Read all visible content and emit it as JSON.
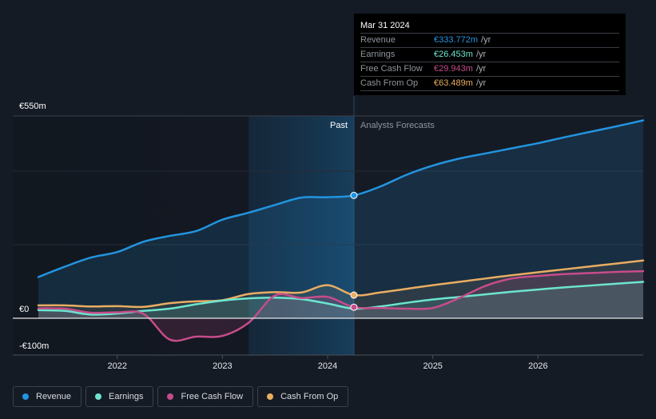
{
  "tooltip": {
    "date": "Mar 31 2024",
    "rows": [
      {
        "label": "Revenue",
        "value": "€333.772m",
        "unit": "/yr",
        "color": "#2394df"
      },
      {
        "label": "Earnings",
        "value": "€26.453m",
        "unit": "/yr",
        "color": "#6ce5cf"
      },
      {
        "label": "Free Cash Flow",
        "value": "€29.943m",
        "unit": "/yr",
        "color": "#c64c8a"
      },
      {
        "label": "Cash From Op",
        "value": "€63.489m",
        "unit": "/yr",
        "color": "#e9ad62"
      }
    ]
  },
  "legend": [
    {
      "label": "Revenue",
      "color": "#2394df"
    },
    {
      "label": "Earnings",
      "color": "#6ce5cf"
    },
    {
      "label": "Free Cash Flow",
      "color": "#c64c8a"
    },
    {
      "label": "Cash From Op",
      "color": "#e9ad62"
    }
  ],
  "chart_data": {
    "type": "line",
    "title": "",
    "xlabel": "",
    "ylabel": "",
    "region_labels": {
      "past": "Past",
      "forecast": "Analysts Forecasts"
    },
    "past_shade_start": 2023.25,
    "divider_x": 2024.25,
    "x_range": [
      2021.25,
      2027.0
    ],
    "ylim": [
      -100,
      550
    ],
    "y_tick_labels": [
      {
        "value": 550,
        "label": "€550m"
      },
      {
        "value": 0,
        "label": "€0"
      },
      {
        "value": -100,
        "label": "-€100m"
      }
    ],
    "gridlines": [
      550,
      400,
      200,
      0
    ],
    "x_ticks": [
      {
        "value": 2022,
        "label": "2022"
      },
      {
        "value": 2023,
        "label": "2023"
      },
      {
        "value": 2024,
        "label": "2024"
      },
      {
        "value": 2025,
        "label": "2025"
      },
      {
        "value": 2026,
        "label": "2026"
      }
    ],
    "series": [
      {
        "name": "Revenue",
        "color": "#2394df",
        "marker_at": 2024.25,
        "points": [
          [
            2021.25,
            112
          ],
          [
            2021.5,
            140
          ],
          [
            2021.75,
            165
          ],
          [
            2022.0,
            180
          ],
          [
            2022.25,
            208
          ],
          [
            2022.5,
            224
          ],
          [
            2022.75,
            237
          ],
          [
            2023.0,
            268
          ],
          [
            2023.25,
            287
          ],
          [
            2023.5,
            308
          ],
          [
            2023.75,
            328
          ],
          [
            2024.0,
            329
          ],
          [
            2024.25,
            334
          ],
          [
            2024.5,
            358
          ],
          [
            2024.75,
            390
          ],
          [
            2025.0,
            415
          ],
          [
            2025.25,
            434
          ],
          [
            2025.5,
            448
          ],
          [
            2025.75,
            462
          ],
          [
            2026.0,
            476
          ],
          [
            2026.25,
            492
          ],
          [
            2026.5,
            507
          ],
          [
            2026.75,
            522
          ],
          [
            2027.0,
            538
          ]
        ]
      },
      {
        "name": "Earnings",
        "color": "#6ce5cf",
        "marker_at": null,
        "points": [
          [
            2021.25,
            22
          ],
          [
            2021.5,
            20
          ],
          [
            2021.75,
            10
          ],
          [
            2022.0,
            13
          ],
          [
            2022.25,
            20
          ],
          [
            2022.5,
            26
          ],
          [
            2022.75,
            38
          ],
          [
            2023.0,
            48
          ],
          [
            2023.25,
            54
          ],
          [
            2023.5,
            56
          ],
          [
            2023.75,
            52
          ],
          [
            2024.0,
            40
          ],
          [
            2024.25,
            26
          ],
          [
            2024.5,
            32
          ],
          [
            2024.75,
            42
          ],
          [
            2025.0,
            51
          ],
          [
            2025.25,
            58
          ],
          [
            2025.5,
            65
          ],
          [
            2025.75,
            72
          ],
          [
            2026.0,
            78
          ],
          [
            2026.25,
            84
          ],
          [
            2026.5,
            89
          ],
          [
            2026.75,
            94
          ],
          [
            2027.0,
            99
          ]
        ]
      },
      {
        "name": "Free Cash Flow",
        "color": "#c64c8a",
        "marker_at": 2024.25,
        "points": [
          [
            2021.25,
            27
          ],
          [
            2021.5,
            26
          ],
          [
            2021.75,
            15
          ],
          [
            2022.0,
            16
          ],
          [
            2022.25,
            12
          ],
          [
            2022.5,
            -58
          ],
          [
            2022.75,
            -50
          ],
          [
            2023.0,
            -48
          ],
          [
            2023.25,
            -12
          ],
          [
            2023.5,
            62
          ],
          [
            2023.75,
            55
          ],
          [
            2024.0,
            58
          ],
          [
            2024.25,
            30
          ],
          [
            2024.5,
            28
          ],
          [
            2024.75,
            26
          ],
          [
            2025.0,
            28
          ],
          [
            2025.25,
            55
          ],
          [
            2025.5,
            88
          ],
          [
            2025.75,
            108
          ],
          [
            2026.0,
            115
          ],
          [
            2026.25,
            120
          ],
          [
            2026.5,
            123
          ],
          [
            2026.75,
            126
          ],
          [
            2027.0,
            128
          ]
        ]
      },
      {
        "name": "Cash From Op",
        "color": "#e9ad62",
        "marker_at": 2024.25,
        "points": [
          [
            2021.25,
            35
          ],
          [
            2021.5,
            35
          ],
          [
            2021.75,
            32
          ],
          [
            2022.0,
            33
          ],
          [
            2022.25,
            31
          ],
          [
            2022.5,
            41
          ],
          [
            2022.75,
            46
          ],
          [
            2023.0,
            49
          ],
          [
            2023.25,
            66
          ],
          [
            2023.5,
            71
          ],
          [
            2023.75,
            70
          ],
          [
            2024.0,
            90
          ],
          [
            2024.25,
            63
          ],
          [
            2024.5,
            70
          ],
          [
            2024.75,
            80
          ],
          [
            2025.0,
            90
          ],
          [
            2025.25,
            99
          ],
          [
            2025.5,
            108
          ],
          [
            2025.75,
            117
          ],
          [
            2026.0,
            125
          ],
          [
            2026.25,
            133
          ],
          [
            2026.5,
            141
          ],
          [
            2026.75,
            149
          ],
          [
            2027.0,
            157
          ]
        ]
      }
    ]
  }
}
